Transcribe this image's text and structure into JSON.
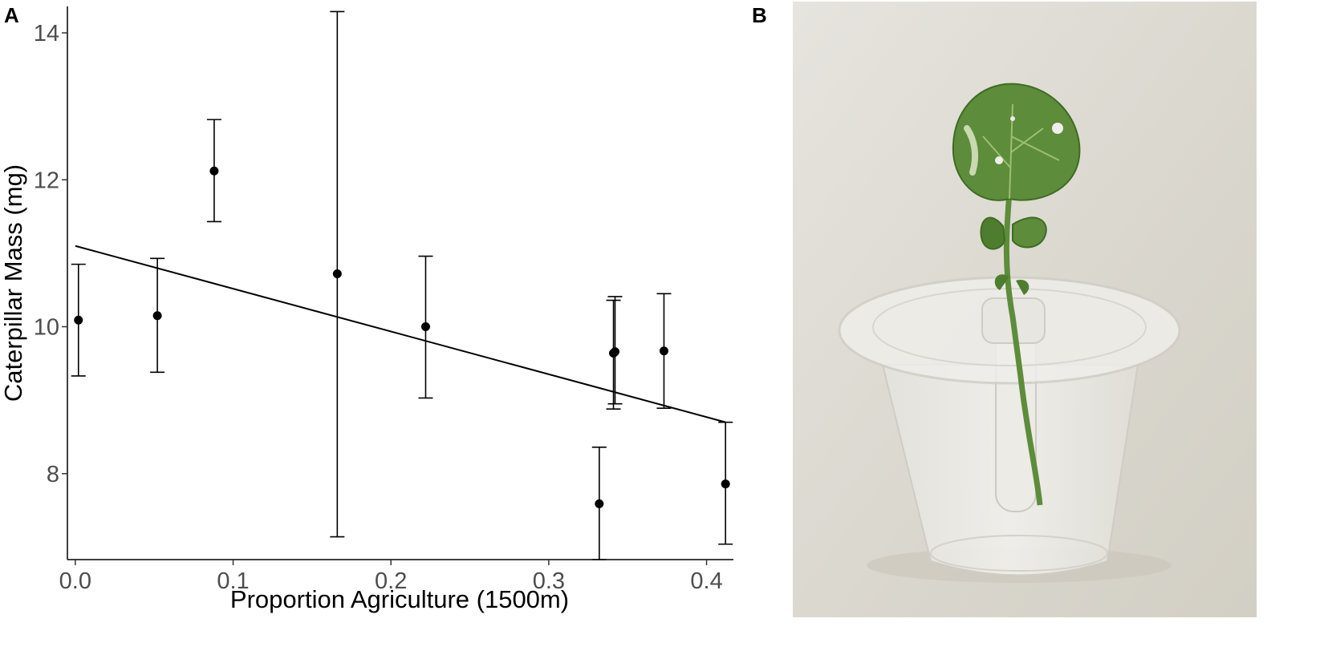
{
  "panels": {
    "a": "A",
    "b": "B"
  },
  "chart_data": {
    "type": "scatter",
    "xlabel": "Proportion Agriculture (1500m)",
    "ylabel": "Caterpillar Mass (mg)",
    "xlim": [
      -0.005,
      0.417
    ],
    "ylim": [
      6.83,
      14.36
    ],
    "x_ticks": [
      0.0,
      0.1,
      0.2,
      0.3,
      0.4
    ],
    "x_tick_labels": [
      "0.0",
      "0.1",
      "0.2",
      "0.3",
      "0.4"
    ],
    "y_ticks": [
      8,
      10,
      12,
      14
    ],
    "y_tick_labels": [
      "8",
      "10",
      "12",
      "14"
    ],
    "grid": false,
    "points": [
      {
        "x": 0.002,
        "y": 10.09,
        "ymin": 9.33,
        "ymax": 10.85
      },
      {
        "x": 0.052,
        "y": 10.15,
        "ymin": 9.38,
        "ymax": 10.93
      },
      {
        "x": 0.088,
        "y": 12.12,
        "ymin": 11.43,
        "ymax": 12.82
      },
      {
        "x": 0.166,
        "y": 10.72,
        "ymin": 7.14,
        "ymax": 14.29
      },
      {
        "x": 0.222,
        "y": 10.0,
        "ymin": 9.03,
        "ymax": 10.96
      },
      {
        "x": 0.332,
        "y": 7.59,
        "ymin": 6.83,
        "ymax": 8.36
      },
      {
        "x": 0.341,
        "y": 9.64,
        "ymin": 8.88,
        "ymax": 10.36
      },
      {
        "x": 0.342,
        "y": 9.66,
        "ymin": 8.95,
        "ymax": 10.41
      },
      {
        "x": 0.373,
        "y": 9.67,
        "ymin": 8.89,
        "ymax": 10.45
      },
      {
        "x": 0.412,
        "y": 7.86,
        "ymin": 7.04,
        "ymax": 8.7
      }
    ],
    "fit_line": {
      "x": [
        0.0,
        0.412
      ],
      "y": [
        11.1,
        8.7
      ]
    }
  },
  "photo": {
    "subject": "brassica-cutting-in-clear-cup",
    "colors": {
      "background": "#dcd9d1",
      "leaf": "#5d8c3a",
      "leaf_dark": "#3f6b24",
      "cup": "#eceae4"
    }
  }
}
